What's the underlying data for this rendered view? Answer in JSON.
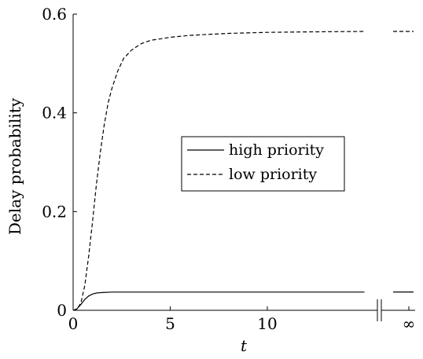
{
  "chart_data": {
    "type": "line",
    "xlabel": "t",
    "ylabel": "Delay probability",
    "xlim": [
      0,
      15.5
    ],
    "ylim": [
      0,
      0.6
    ],
    "x_ticks": [
      0,
      5,
      10
    ],
    "x_tick_labels": [
      "0",
      "5",
      "10"
    ],
    "y_ticks": [
      0,
      0.2,
      0.4,
      0.6
    ],
    "y_tick_labels": [
      "0",
      "0.2",
      "0.4",
      "0.6"
    ],
    "break_label": "∞",
    "legend_position": "center-right",
    "series": [
      {
        "name": "high priority",
        "style": "solid",
        "color": "#000000",
        "x": [
          0,
          0.2,
          0.4,
          0.6,
          0.8,
          1.0,
          1.2,
          1.5,
          2.0,
          3.0,
          5.0,
          10.0,
          15.0
        ],
        "y": [
          0,
          0.003,
          0.012,
          0.022,
          0.029,
          0.033,
          0.035,
          0.036,
          0.037,
          0.037,
          0.037,
          0.037,
          0.037
        ],
        "y_infinity": 0.037
      },
      {
        "name": "low priority",
        "style": "dashed",
        "color": "#000000",
        "x": [
          0,
          0.2,
          0.4,
          0.6,
          0.8,
          1.0,
          1.2,
          1.4,
          1.6,
          1.8,
          2.0,
          2.3,
          2.6,
          3.0,
          3.5,
          4.0,
          5.0,
          6.0,
          8.0,
          10.0,
          12.0,
          15.0
        ],
        "y": [
          0,
          0.002,
          0.015,
          0.05,
          0.11,
          0.18,
          0.255,
          0.32,
          0.375,
          0.42,
          0.45,
          0.485,
          0.51,
          0.527,
          0.54,
          0.547,
          0.553,
          0.557,
          0.561,
          0.563,
          0.564,
          0.565
        ],
        "y_infinity": 0.565
      }
    ]
  }
}
